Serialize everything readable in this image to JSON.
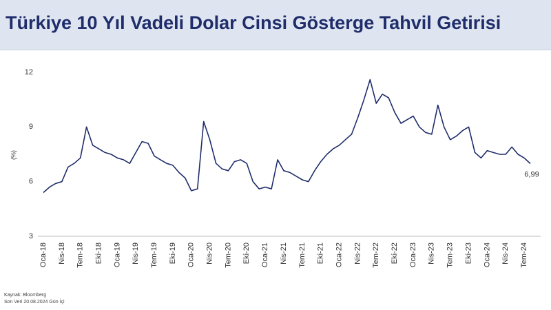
{
  "header": {
    "title": "Türkiye 10 Yıl Vadeli Dolar Cinsi Gösterge Tahvil Getirisi"
  },
  "chart_data": {
    "type": "line",
    "categories": [
      "Oca-18",
      null,
      null,
      "Nis-18",
      null,
      null,
      "Tem-18",
      null,
      null,
      "Eki-18",
      null,
      null,
      "Oca-19",
      null,
      null,
      "Nis-19",
      null,
      null,
      "Tem-19",
      null,
      null,
      "Eki-19",
      null,
      null,
      "Oca-20",
      null,
      null,
      "Nis-20",
      null,
      null,
      "Tem-20",
      null,
      null,
      "Eki-20",
      null,
      null,
      "Oca-21",
      null,
      null,
      "Nis-21",
      null,
      null,
      "Tem-21",
      null,
      null,
      "Eki-21",
      null,
      null,
      "Oca-22",
      null,
      null,
      "Nis-22",
      null,
      null,
      "Tem-22",
      null,
      null,
      "Eki-22",
      null,
      null,
      "Oca-23",
      null,
      null,
      "Nis-23",
      null,
      null,
      "Tem-23",
      null,
      null,
      "Eki-23",
      null,
      null,
      "Oca-24",
      null,
      null,
      "Nis-24",
      null,
      null,
      "Tem-24",
      null
    ],
    "series": [
      {
        "color": "#1f2d6b",
        "values": [
          5.4,
          5.7,
          5.9,
          6.0,
          6.8,
          7.0,
          7.3,
          9.0,
          8.0,
          7.8,
          7.6,
          7.5,
          7.3,
          7.2,
          7.0,
          7.6,
          8.2,
          8.1,
          7.4,
          7.2,
          7.0,
          6.9,
          6.5,
          6.2,
          5.5,
          5.6,
          9.3,
          8.3,
          7.0,
          6.7,
          6.6,
          7.1,
          7.2,
          7.0,
          6.0,
          5.6,
          5.7,
          5.6,
          7.2,
          6.6,
          6.5,
          6.3,
          6.1,
          6.0,
          6.6,
          7.1,
          7.5,
          7.8,
          8.0,
          8.3,
          8.6,
          9.5,
          10.5,
          11.6,
          10.3,
          10.8,
          10.6,
          9.8,
          9.2,
          9.4,
          9.6,
          9.0,
          8.7,
          8.6,
          10.2,
          9.0,
          8.3,
          8.5,
          8.8,
          9.0,
          7.6,
          7.3,
          7.7,
          7.6,
          7.5,
          7.5,
          7.9,
          7.5,
          7.3,
          6.99
        ],
        "value_labels": [
          null,
          null,
          null,
          null,
          null,
          null,
          null,
          null,
          null,
          null,
          null,
          null,
          null,
          null,
          null,
          null,
          null,
          null,
          null,
          null,
          null,
          null,
          null,
          null,
          null,
          null,
          null,
          null,
          null,
          null,
          null,
          null,
          null,
          null,
          null,
          null,
          null,
          null,
          null,
          null,
          null,
          null,
          null,
          null,
          null,
          null,
          null,
          null,
          null,
          null,
          null,
          null,
          null,
          null,
          null,
          null,
          null,
          null,
          null,
          null,
          null,
          null,
          null,
          null,
          null,
          null,
          null,
          null,
          null,
          null,
          null,
          null,
          null,
          null,
          null,
          null,
          null,
          null,
          null,
          "6,99"
        ]
      }
    ],
    "ylabel": "(%)",
    "ylim": [
      3,
      12
    ],
    "yticks": [
      3,
      6,
      9,
      12
    ]
  },
  "footer": {
    "source": "Kaynak: Bloomberg",
    "note": "Son Veri 20.08.2024 Gün İçi"
  }
}
